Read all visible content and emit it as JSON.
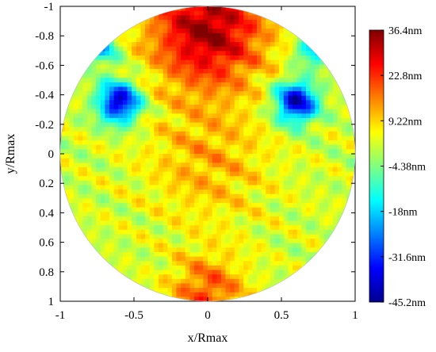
{
  "chart_data": {
    "type": "heatmap",
    "title": "",
    "xlabel": "x/Rmax",
    "ylabel": "y/Rmax",
    "xlim": [
      -1,
      1
    ],
    "ylim": [
      -1,
      1
    ],
    "y_axis_reversed": true,
    "x_ticks": [
      "-1",
      "-0.5",
      "0",
      "0.5",
      "1"
    ],
    "y_ticks": [
      "-1",
      "-0.8",
      "-0.6",
      "-0.4",
      "-0.2",
      "0",
      "0.2",
      "0.4",
      "0.6",
      "0.8",
      "1"
    ],
    "grid": false,
    "domain_shape": "circle",
    "colorbar": {
      "min": -45.2,
      "max": 36.4,
      "colormap": "jet",
      "tick_labels": [
        "36.4nm",
        "22.8nm",
        "9.22nm",
        "-4.38nm",
        "-18nm",
        "-31.6nm",
        "-45.2nm"
      ]
    },
    "features": [
      {
        "name": "upper peak",
        "x": 0.0,
        "y": -0.85,
        "value": 34
      },
      {
        "name": "bottom edge band",
        "x": 0.0,
        "y": 0.95,
        "value": 20
      },
      {
        "name": "left trough",
        "x": -0.6,
        "y": -0.35,
        "value": -40
      },
      {
        "name": "right trough",
        "x": 0.6,
        "y": -0.35,
        "value": -40
      },
      {
        "name": "left edge dip",
        "x": -0.72,
        "y": -0.72,
        "value": -20
      },
      {
        "name": "right edge dip",
        "x": 0.72,
        "y": -0.72,
        "value": -20
      },
      {
        "name": "center ridge",
        "x": 0.0,
        "y": 0.05,
        "value": 12
      }
    ]
  }
}
